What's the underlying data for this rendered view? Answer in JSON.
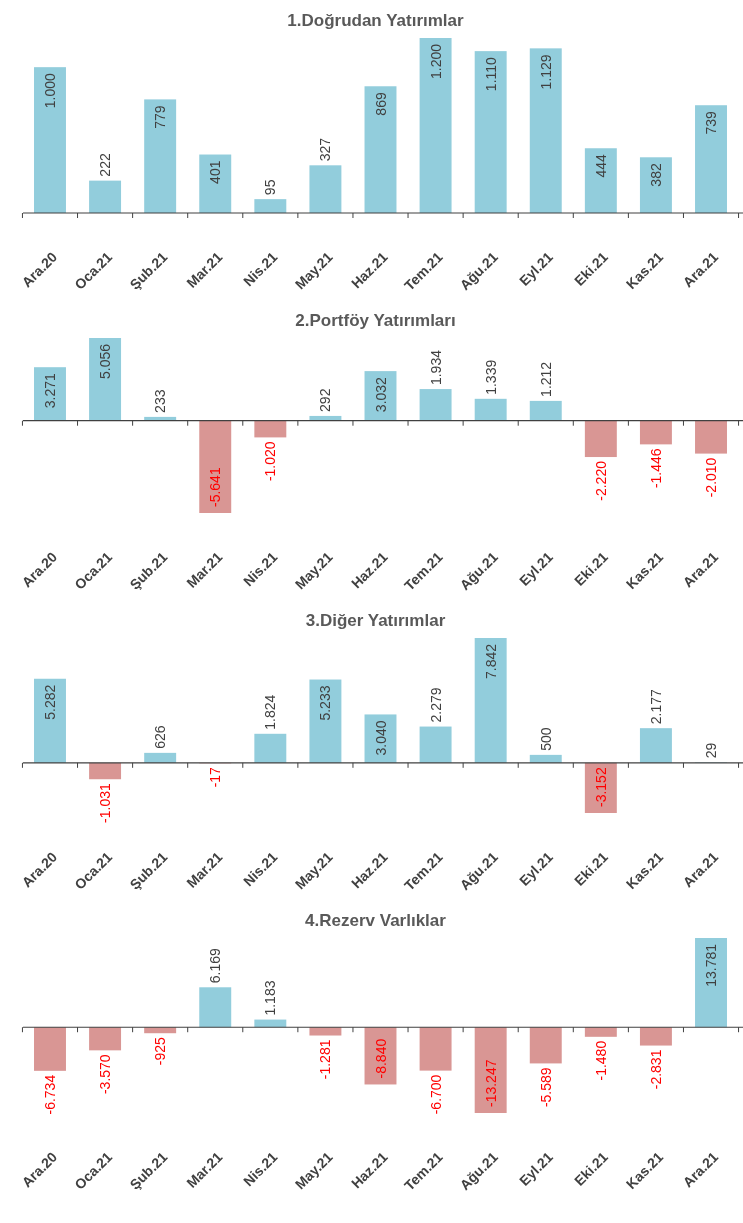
{
  "chart_data": [
    {
      "type": "bar",
      "title": "1.Doğrudan Yatırımlar",
      "categories": [
        "Ara.20",
        "Oca.21",
        "Şub.21",
        "Mar.21",
        "Nis.21",
        "May.21",
        "Haz.21",
        "Tem.21",
        "Ağu.21",
        "Eyl.21",
        "Eki.21",
        "Kas.21",
        "Ara.21"
      ],
      "values": [
        1000,
        222,
        779,
        401,
        95,
        327,
        869,
        1200,
        1110,
        1129,
        444,
        382,
        739
      ],
      "colors": [
        "#92cddc",
        "#92cddc",
        "#92cddc",
        "#92cddc",
        "#92cddc",
        "#92cddc",
        "#92cddc",
        "#92cddc",
        "#92cddc",
        "#92cddc",
        "#92cddc",
        "#92cddc",
        "#92cddc"
      ],
      "value_labels": [
        "1.000",
        "222",
        "779",
        "401",
        "95",
        "327",
        "869",
        "1.200",
        "1.110",
        "1.129",
        "444",
        "382",
        "739"
      ]
    },
    {
      "type": "bar",
      "title": "2.Portföy Yatırımları",
      "categories": [
        "Ara.20",
        "Oca.21",
        "Şub.21",
        "Mar.21",
        "Nis.21",
        "May.21",
        "Haz.21",
        "Tem.21",
        "Ağu.21",
        "Eyl.21",
        "Eki.21",
        "Kas.21",
        "Ara.21"
      ],
      "values": [
        3271,
        5056,
        233,
        -5641,
        -1020,
        292,
        3032,
        1934,
        1339,
        1212,
        -2220,
        -1446,
        -2010
      ],
      "colors": [
        "#92cddc",
        "#92cddc",
        "#92cddc",
        "#d99694",
        "#d99694",
        "#92cddc",
        "#92cddc",
        "#92cddc",
        "#92cddc",
        "#92cddc",
        "#d99694",
        "#d99694",
        "#d99694"
      ],
      "value_labels": [
        "3.271",
        "5.056",
        "233",
        "-5.641",
        "-1.020",
        "292",
        "3.032",
        "1.934",
        "1.339",
        "1.212",
        "-2.220",
        "-1.446",
        "-2.010"
      ]
    },
    {
      "type": "bar",
      "title": "3.Diğer Yatırımlar",
      "categories": [
        "Ara.20",
        "Oca.21",
        "Şub.21",
        "Mar.21",
        "Nis.21",
        "May.21",
        "Haz.21",
        "Tem.21",
        "Ağu.21",
        "Eyl.21",
        "Eki.21",
        "Kas.21",
        "Ara.21"
      ],
      "values": [
        5282,
        -1031,
        626,
        -17,
        1824,
        5233,
        3040,
        2279,
        7842,
        500,
        -3152,
        2177,
        29
      ],
      "colors": [
        "#92cddc",
        "#d99694",
        "#92cddc",
        "#d99694",
        "#92cddc",
        "#92cddc",
        "#92cddc",
        "#92cddc",
        "#92cddc",
        "#92cddc",
        "#d99694",
        "#92cddc",
        "#92cddc"
      ],
      "value_labels": [
        "5.282",
        "-1.031",
        "626",
        "-17",
        "1.824",
        "5.233",
        "3.040",
        "2.279",
        "7.842",
        "500",
        "-3.152",
        "2.177",
        "29"
      ]
    },
    {
      "type": "bar",
      "title": "4.Rezerv Varlıklar",
      "categories": [
        "Ara.20",
        "Oca.21",
        "Şub.21",
        "Mar.21",
        "Nis.21",
        "May.21",
        "Haz.21",
        "Tem.21",
        "Ağu.21",
        "Eyl.21",
        "Eki.21",
        "Kas.21",
        "Ara.21"
      ],
      "values": [
        -6734,
        -3570,
        -925,
        6169,
        1183,
        -1281,
        -8840,
        -6700,
        -13247,
        -5589,
        -1480,
        -2831,
        13781
      ],
      "colors": [
        "#d99694",
        "#d99694",
        "#d99694",
        "#92cddc",
        "#92cddc",
        "#d99694",
        "#d99694",
        "#d99694",
        "#d99694",
        "#d99694",
        "#d99694",
        "#d99694",
        "#92cddc"
      ],
      "value_labels": [
        "-6.734",
        "-3.570",
        "-925",
        "6.169",
        "1.183",
        "-1.281",
        "-8.840",
        "-6.700",
        "-13.247",
        "-5.589",
        "-1.480",
        "-2.831",
        "13.781"
      ]
    }
  ]
}
